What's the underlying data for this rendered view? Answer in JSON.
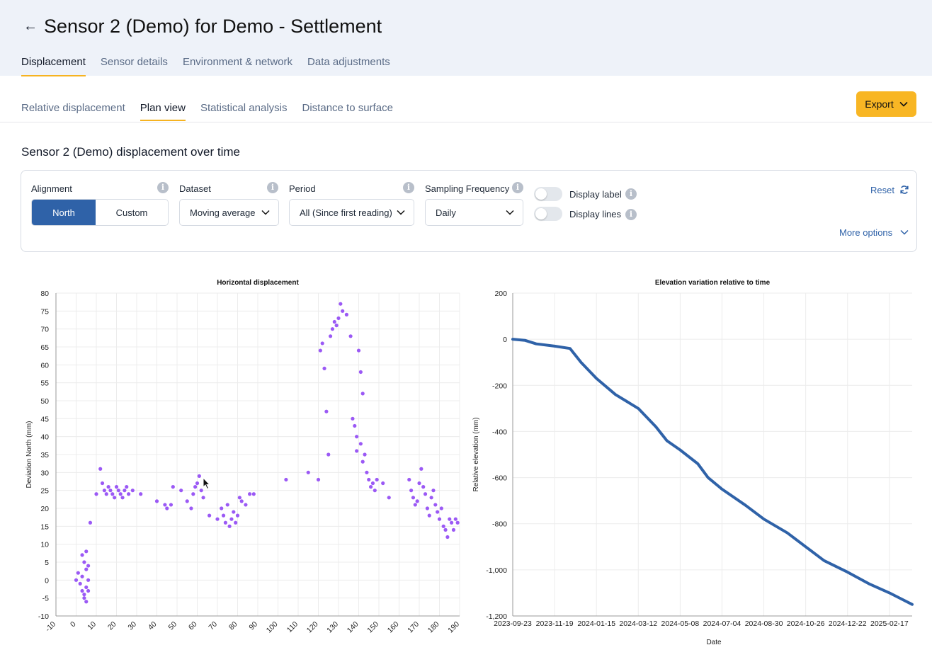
{
  "header": {
    "back_icon": "arrow-left-icon",
    "title_strong": "Sensor 2 (Demo)",
    "title_rest": " for Demo - Settlement",
    "tabs": [
      {
        "label": "Displacement",
        "active": true
      },
      {
        "label": "Sensor details",
        "active": false
      },
      {
        "label": "Environment & network",
        "active": false
      },
      {
        "label": "Data adjustments",
        "active": false
      }
    ]
  },
  "subtabs": [
    {
      "label": "Relative displacement",
      "active": false
    },
    {
      "label": "Plan view",
      "active": true
    },
    {
      "label": "Statistical analysis",
      "active": false
    },
    {
      "label": "Distance to surface",
      "active": false
    }
  ],
  "export": {
    "label": "Export"
  },
  "section_title": "Sensor 2 (Demo) displacement over time",
  "filters": {
    "alignment": {
      "label": "Alignment",
      "options": [
        "North",
        "Custom"
      ],
      "selected": "North"
    },
    "dataset": {
      "label": "Dataset",
      "value": "Moving average"
    },
    "period": {
      "label": "Period",
      "value": "All (Since first reading)"
    },
    "sampling": {
      "label": "Sampling Frequency",
      "value": "Daily"
    },
    "display_label": {
      "label": "Display label",
      "on": false
    },
    "display_lines": {
      "label": "Display lines",
      "on": false
    },
    "reset": "Reset",
    "more_options": "More options"
  },
  "colors": {
    "accent": "#f8b624",
    "primary": "#2f62a8",
    "scatter": "#9b59f5",
    "line": "#2f62a8"
  },
  "chart_data": [
    {
      "type": "scatter",
      "title": "Horizontal displacement",
      "xlabel": "",
      "ylabel": "Deviation North (mm)",
      "xlim": [
        -10,
        190
      ],
      "ylim": [
        -10,
        80
      ],
      "xticks": [
        -10,
        0,
        10,
        20,
        30,
        40,
        50,
        60,
        70,
        80,
        90,
        100,
        110,
        120,
        130,
        140,
        150,
        160,
        170,
        180,
        190
      ],
      "yticks": [
        -10,
        -5,
        0,
        5,
        10,
        15,
        20,
        25,
        30,
        35,
        40,
        45,
        50,
        55,
        60,
        65,
        70,
        75,
        80
      ],
      "grid": true,
      "points": [
        [
          0,
          0
        ],
        [
          1,
          2
        ],
        [
          2,
          -1
        ],
        [
          3,
          -3
        ],
        [
          3,
          1
        ],
        [
          4,
          -4
        ],
        [
          4,
          -5
        ],
        [
          5,
          -6
        ],
        [
          5,
          -2
        ],
        [
          6,
          0
        ],
        [
          6,
          -3
        ],
        [
          5,
          3
        ],
        [
          4,
          5
        ],
        [
          3,
          7
        ],
        [
          5,
          8
        ],
        [
          6,
          4
        ],
        [
          7,
          16
        ],
        [
          10,
          24
        ],
        [
          12,
          31
        ],
        [
          13,
          27
        ],
        [
          14,
          25
        ],
        [
          15,
          24
        ],
        [
          16,
          26
        ],
        [
          17,
          25
        ],
        [
          18,
          24
        ],
        [
          19,
          23
        ],
        [
          20,
          26
        ],
        [
          21,
          25
        ],
        [
          22,
          24
        ],
        [
          23,
          23
        ],
        [
          24,
          25
        ],
        [
          25,
          26
        ],
        [
          26,
          24
        ],
        [
          28,
          25
        ],
        [
          32,
          24
        ],
        [
          40,
          22
        ],
        [
          44,
          21
        ],
        [
          45,
          20
        ],
        [
          47,
          21
        ],
        [
          48,
          26
        ],
        [
          52,
          25
        ],
        [
          55,
          22
        ],
        [
          57,
          20
        ],
        [
          58,
          24
        ],
        [
          59,
          26
        ],
        [
          60,
          27
        ],
        [
          61,
          29
        ],
        [
          62,
          25
        ],
        [
          63,
          23
        ],
        [
          66,
          18
        ],
        [
          70,
          17
        ],
        [
          72,
          20
        ],
        [
          73,
          18
        ],
        [
          74,
          16
        ],
        [
          75,
          21
        ],
        [
          76,
          15
        ],
        [
          77,
          17
        ],
        [
          78,
          19
        ],
        [
          79,
          16
        ],
        [
          80,
          18
        ],
        [
          81,
          23
        ],
        [
          82,
          22
        ],
        [
          84,
          21
        ],
        [
          86,
          24
        ],
        [
          88,
          24
        ],
        [
          104,
          28
        ],
        [
          115,
          30
        ],
        [
          120,
          28
        ],
        [
          121,
          64
        ],
        [
          122,
          66
        ],
        [
          123,
          59
        ],
        [
          124,
          47
        ],
        [
          125,
          35
        ],
        [
          126,
          68
        ],
        [
          127,
          70
        ],
        [
          128,
          72
        ],
        [
          129,
          71
        ],
        [
          130,
          73
        ],
        [
          131,
          77
        ],
        [
          132,
          75
        ],
        [
          134,
          74
        ],
        [
          136,
          68
        ],
        [
          137,
          45
        ],
        [
          138,
          43
        ],
        [
          139,
          40
        ],
        [
          139,
          36
        ],
        [
          140,
          64
        ],
        [
          141,
          58
        ],
        [
          142,
          52
        ],
        [
          141,
          38
        ],
        [
          142,
          33
        ],
        [
          143,
          35
        ],
        [
          144,
          30
        ],
        [
          145,
          28
        ],
        [
          146,
          26
        ],
        [
          147,
          27
        ],
        [
          148,
          25
        ],
        [
          149,
          28
        ],
        [
          152,
          27
        ],
        [
          155,
          23
        ],
        [
          165,
          28
        ],
        [
          166,
          25
        ],
        [
          167,
          23
        ],
        [
          168,
          21
        ],
        [
          169,
          22
        ],
        [
          170,
          27
        ],
        [
          171,
          31
        ],
        [
          172,
          26
        ],
        [
          173,
          24
        ],
        [
          174,
          20
        ],
        [
          175,
          18
        ],
        [
          176,
          23
        ],
        [
          177,
          25
        ],
        [
          178,
          21
        ],
        [
          179,
          19
        ],
        [
          180,
          17
        ],
        [
          181,
          20
        ],
        [
          182,
          15
        ],
        [
          183,
          14
        ],
        [
          184,
          12
        ],
        [
          185,
          17
        ],
        [
          186,
          16
        ],
        [
          187,
          14
        ],
        [
          188,
          17
        ],
        [
          189,
          16
        ]
      ]
    },
    {
      "type": "line",
      "title": "Elevation variation relative to time",
      "xlabel": "Date",
      "ylabel": "Relative elevation (mm)",
      "ylim": [
        -1200,
        200
      ],
      "yticks": [
        200,
        0,
        -200,
        -400,
        -600,
        -800,
        -1000,
        -1200
      ],
      "ytick_labels": [
        "200",
        "0",
        "-200",
        "-400",
        "-600",
        "-800",
        "-1,000",
        "-1,200"
      ],
      "xticks": [
        "2023-09-23",
        "2023-11-19",
        "2024-01-15",
        "2024-03-12",
        "2024-05-08",
        "2024-07-04",
        "2024-08-30",
        "2024-10-26",
        "2024-12-22",
        "2025-02-17"
      ],
      "grid": true,
      "series": [
        {
          "x": [
            "2023-09-23",
            "2023-10-10",
            "2023-10-25",
            "2023-11-19",
            "2023-12-10",
            "2023-12-25",
            "2024-01-15",
            "2024-02-10",
            "2024-03-12",
            "2024-04-05",
            "2024-04-20",
            "2024-05-08",
            "2024-06-01",
            "2024-06-15",
            "2024-07-04",
            "2024-08-05",
            "2024-08-30",
            "2024-10-01",
            "2024-10-26",
            "2024-11-20",
            "2024-12-22",
            "2025-01-20",
            "2025-02-17",
            "2025-03-20"
          ],
          "y": [
            0,
            -5,
            -20,
            -30,
            -40,
            -100,
            -170,
            -240,
            -300,
            -380,
            -440,
            -480,
            -540,
            -600,
            -650,
            -720,
            -780,
            -840,
            -900,
            -960,
            -1010,
            -1060,
            -1100,
            -1150
          ]
        }
      ]
    }
  ]
}
